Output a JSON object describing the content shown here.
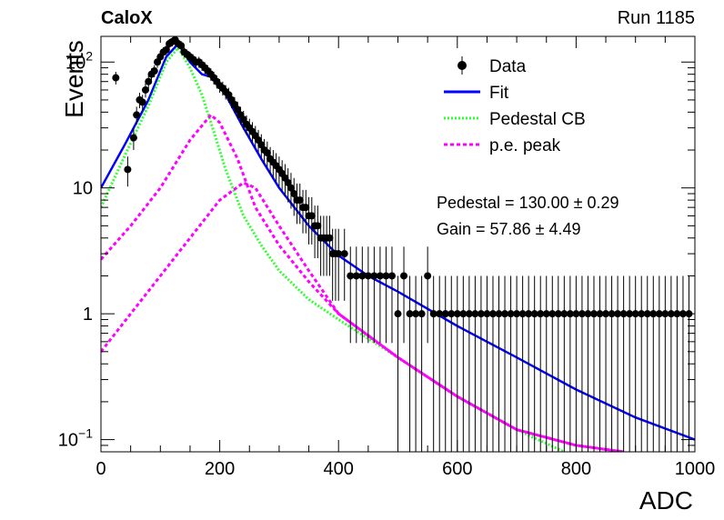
{
  "header": {
    "experiment": "CaloX",
    "run": "Run 1185"
  },
  "chart_data": {
    "type": "scatter",
    "xlabel": "ADC",
    "ylabel": "Events",
    "xlim": [
      0,
      1000
    ],
    "ylim": [
      0.08,
      160
    ],
    "yscale": "log",
    "xticks": [
      0,
      200,
      400,
      600,
      800,
      1000
    ],
    "yticks": [
      {
        "value": 0.1,
        "mantissa": "10",
        "exp": "−1"
      },
      {
        "value": 1,
        "mantissa": "1",
        "exp": ""
      },
      {
        "value": 10,
        "mantissa": "10",
        "exp": ""
      },
      {
        "value": 100,
        "mantissa": "10",
        "exp": "2"
      }
    ],
    "legend": {
      "placement": "top-right",
      "entries": [
        {
          "label": "Data",
          "style": "marker",
          "color": "#000000"
        },
        {
          "label": "Fit",
          "style": "solid",
          "color": "#0000ff"
        },
        {
          "label": "Pedestal CB",
          "style": "dotted",
          "color": "#33ff33"
        },
        {
          "label": "p.e. peak",
          "style": "dashed",
          "color": "#ff00ff"
        }
      ]
    },
    "annotations": [
      "Pedestal = 130.00 ± 0.29",
      "Gain = 57.86 ± 4.49"
    ],
    "series": [
      {
        "name": "Data",
        "type": "points_with_errors",
        "color": "#000000",
        "x": [
          25,
          45,
          55,
          60,
          65,
          70,
          75,
          80,
          85,
          90,
          95,
          100,
          105,
          110,
          115,
          120,
          125,
          130,
          135,
          140,
          145,
          150,
          155,
          160,
          165,
          170,
          175,
          180,
          185,
          190,
          195,
          200,
          205,
          210,
          215,
          220,
          225,
          230,
          235,
          240,
          245,
          250,
          255,
          260,
          265,
          270,
          275,
          280,
          285,
          290,
          295,
          300,
          305,
          310,
          315,
          320,
          325,
          330,
          335,
          340,
          345,
          350,
          355,
          360,
          365,
          370,
          375,
          380,
          385,
          390,
          395,
          400,
          410,
          420,
          430,
          440,
          450,
          460,
          470,
          480,
          490,
          500,
          510,
          520,
          530,
          540,
          550,
          560,
          570,
          580,
          590,
          600,
          610,
          620,
          630,
          640,
          650,
          660,
          670,
          680,
          690,
          700,
          710,
          720,
          730,
          740,
          750,
          760,
          770,
          780,
          790,
          800,
          810,
          820,
          830,
          840,
          850,
          860,
          870,
          880,
          890,
          900,
          910,
          920,
          930,
          940,
          950,
          960,
          970,
          980,
          990
        ],
        "y": [
          75,
          14,
          25,
          38,
          50,
          48,
          60,
          70,
          80,
          85,
          100,
          110,
          120,
          125,
          140,
          145,
          150,
          140,
          135,
          120,
          115,
          110,
          105,
          100,
          100,
          95,
          90,
          85,
          80,
          75,
          70,
          65,
          62,
          58,
          55,
          50,
          46,
          42,
          38,
          35,
          32,
          30,
          28,
          26,
          24,
          22,
          20,
          19,
          17,
          16,
          15,
          14,
          13,
          12,
          11,
          10,
          9,
          8,
          8,
          7,
          7,
          6,
          6,
          5,
          5,
          4,
          4,
          4,
          4,
          3,
          3,
          3,
          3,
          2,
          2,
          2,
          2,
          2,
          2,
          2,
          2,
          1,
          2,
          1,
          1,
          1,
          2,
          1,
          1,
          1,
          1,
          1,
          1,
          1,
          1,
          1,
          1,
          1,
          1,
          1,
          1,
          1,
          1,
          1,
          1,
          1,
          1,
          1,
          1,
          1,
          1,
          1,
          1,
          1,
          1,
          1,
          1,
          1,
          1,
          1,
          1,
          1,
          1,
          1,
          1,
          1,
          1,
          1,
          1,
          1,
          1
        ]
      },
      {
        "name": "Fit",
        "type": "line",
        "color": "#0000ff",
        "x": [
          0,
          40,
          80,
          110,
          130,
          150,
          170,
          190,
          210,
          240,
          270,
          300,
          350,
          400,
          450,
          500,
          600,
          700,
          800,
          900,
          1000
        ],
        "y": [
          10,
          22,
          50,
          110,
          140,
          100,
          80,
          75,
          55,
          30,
          17,
          10,
          5,
          2.9,
          2.0,
          1.5,
          0.8,
          0.45,
          0.25,
          0.15,
          0.1
        ]
      },
      {
        "name": "Pedestal CB",
        "type": "line",
        "color": "#33ff33",
        "x": [
          0,
          40,
          80,
          110,
          130,
          150,
          170,
          190,
          210,
          240,
          270,
          300,
          350,
          400,
          500,
          600,
          700,
          780
        ],
        "y": [
          7,
          18,
          45,
          100,
          130,
          90,
          55,
          28,
          14,
          6,
          3.5,
          2.2,
          1.3,
          0.9,
          0.45,
          0.22,
          0.12,
          0.08
        ]
      },
      {
        "name": "p.e. peak",
        "type": "line",
        "color": "#ff00ff",
        "x": [
          0,
          50,
          100,
          150,
          185,
          200,
          230,
          260,
          300,
          350,
          400,
          500,
          600,
          700,
          800,
          880
        ],
        "y": [
          2.7,
          5,
          10,
          24,
          38,
          33,
          17,
          7,
          3.5,
          1.8,
          1.0,
          0.45,
          0.22,
          0.12,
          0.09,
          0.08
        ]
      },
      {
        "name": "p.e. peak",
        "type": "line",
        "color": "#ff00ff",
        "x": [
          0,
          50,
          100,
          150,
          200,
          240,
          260,
          300,
          350,
          400,
          500,
          600,
          700,
          800,
          880
        ],
        "y": [
          0.5,
          1.0,
          2.0,
          4.0,
          8.0,
          11,
          10,
          5,
          2.2,
          1.0,
          0.45,
          0.22,
          0.12,
          0.09,
          0.08
        ]
      }
    ]
  }
}
